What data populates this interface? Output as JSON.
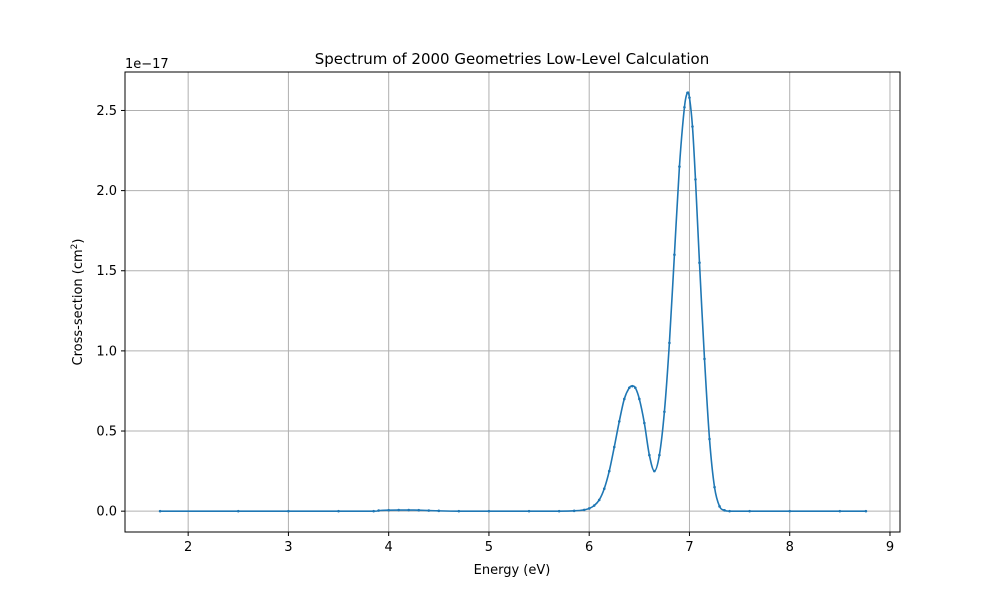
{
  "chart_data": {
    "type": "line",
    "title": "Spectrum of 2000 Geometries Low-Level Calculation",
    "xlabel": "Energy (eV)",
    "ylabel": "Cross-section (cm",
    "ylabel_sup": "2",
    "ylabel_close": ")",
    "y_offset_label": "1e−17",
    "xlim": [
      1.37,
      9.1
    ],
    "ylim": [
      -0.13,
      2.74
    ],
    "x_ticks": [
      2,
      3,
      4,
      5,
      6,
      7,
      8,
      9
    ],
    "x_tick_labels": [
      "2",
      "3",
      "4",
      "5",
      "6",
      "7",
      "8",
      "9"
    ],
    "y_ticks": [
      0.0,
      0.5,
      1.0,
      1.5,
      2.0,
      2.5
    ],
    "y_tick_labels": [
      "0.0",
      "0.5",
      "1.0",
      "1.5",
      "2.0",
      "2.5"
    ],
    "grid": true,
    "series": [
      {
        "color": "#1f77b4",
        "marker": "point",
        "x": [
          1.72,
          2.5,
          3.0,
          3.5,
          3.85,
          3.9,
          4.0,
          4.1,
          4.2,
          4.3,
          4.4,
          4.5,
          4.7,
          5.0,
          5.4,
          5.7,
          5.85,
          5.95,
          6.0,
          6.05,
          6.1,
          6.15,
          6.2,
          6.25,
          6.3,
          6.35,
          6.4,
          6.43,
          6.46,
          6.5,
          6.55,
          6.6,
          6.65,
          6.7,
          6.75,
          6.8,
          6.85,
          6.9,
          6.95,
          6.98,
          7.0,
          7.03,
          7.06,
          7.1,
          7.15,
          7.2,
          7.25,
          7.3,
          7.35,
          7.4,
          7.6,
          8.0,
          8.5,
          8.76
        ],
        "y": [
          0.0,
          0.0,
          0.0,
          0.0,
          0.0,
          0.004,
          0.006,
          0.007,
          0.007,
          0.006,
          0.004,
          0.002,
          0.0,
          0.0,
          0.0,
          0.0,
          0.002,
          0.008,
          0.017,
          0.035,
          0.07,
          0.14,
          0.25,
          0.4,
          0.56,
          0.7,
          0.77,
          0.78,
          0.77,
          0.7,
          0.55,
          0.35,
          0.25,
          0.35,
          0.62,
          1.05,
          1.6,
          2.15,
          2.52,
          2.61,
          2.58,
          2.4,
          2.07,
          1.55,
          0.95,
          0.45,
          0.15,
          0.03,
          0.005,
          0.0,
          0.0,
          0.0,
          0.0,
          0.0
        ]
      }
    ]
  }
}
